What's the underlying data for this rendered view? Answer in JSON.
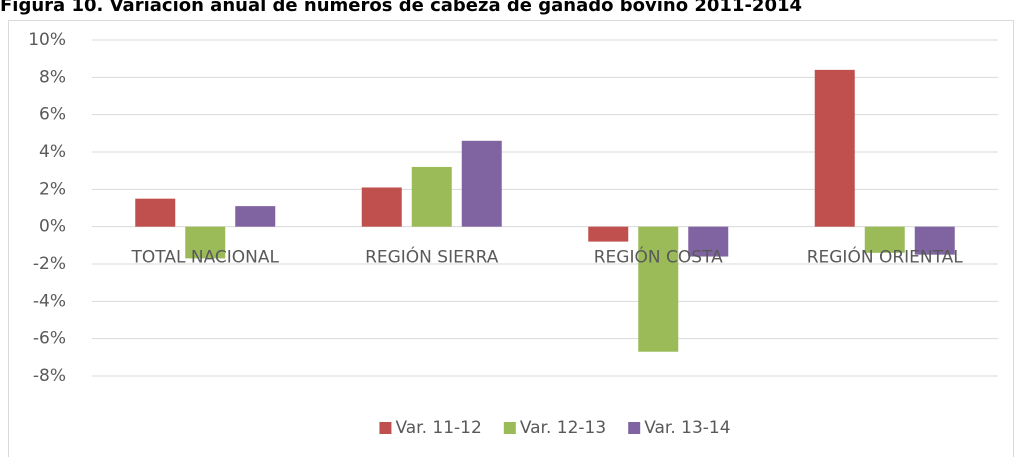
{
  "chart_data": {
    "type": "bar",
    "title": "Figura 10. Variación anual de números de cabeza de ganado bovino 2011-2014",
    "categories": [
      "TOTAL NACIONAL",
      "REGIÓN SIERRA",
      "REGIÓN COSTA",
      "REGIÓN ORIENTAL"
    ],
    "series": [
      {
        "name": "Var. 11-12",
        "color": "#c0504d",
        "values": [
          1.5,
          2.1,
          -0.8,
          8.4
        ]
      },
      {
        "name": "Var. 12-13",
        "color": "#9bbb59",
        "values": [
          -1.7,
          3.2,
          -6.7,
          -1.4
        ]
      },
      {
        "name": "Var. 13-14",
        "color": "#8064a2",
        "values": [
          1.1,
          4.6,
          -1.6,
          -1.5
        ]
      }
    ],
    "ylim": [
      -8,
      10
    ],
    "yticks": [
      {
        "value": -8,
        "label": "-8%"
      },
      {
        "value": -6,
        "label": "-6%"
      },
      {
        "value": -4,
        "label": "-4%"
      },
      {
        "value": -2,
        "label": "-2%"
      },
      {
        "value": 0,
        "label": "0%"
      },
      {
        "value": 2,
        "label": "2%"
      },
      {
        "value": 4,
        "label": "4%"
      },
      {
        "value": 6,
        "label": "6%"
      },
      {
        "value": 8,
        "label": "8%"
      },
      {
        "value": 10,
        "label": "10%"
      }
    ],
    "grid": true,
    "legend": "bottom"
  }
}
